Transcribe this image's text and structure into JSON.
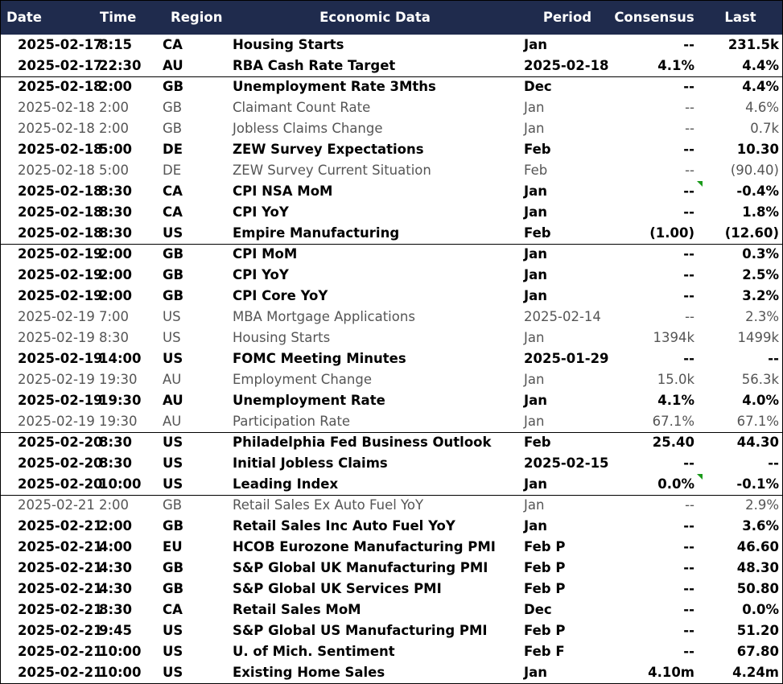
{
  "table": {
    "header": [
      "Date",
      "Time",
      "Region",
      "Economic Data",
      "Period",
      "Consensus",
      "Last"
    ],
    "rows": [
      {
        "bold": true,
        "cells": [
          "2025-02-17",
          "8:15",
          "CA",
          "Housing Starts",
          "Jan",
          "--",
          "231.5k"
        ]
      },
      {
        "bold": true,
        "cells": [
          "2025-02-17",
          "22:30",
          "AU",
          "RBA Cash Rate Target",
          "2025-02-18",
          "4.1%",
          "4.4%"
        ]
      },
      {
        "bold": true,
        "cells": [
          "2025-02-18",
          "2:00",
          "GB",
          "Unemployment Rate 3Mths",
          "Dec",
          "--",
          "4.4%"
        ]
      },
      {
        "bold": false,
        "cells": [
          "2025-02-18",
          "2:00",
          "GB",
          "Claimant Count Rate",
          "Jan",
          "--",
          "4.6%"
        ]
      },
      {
        "bold": false,
        "cells": [
          "2025-02-18",
          "2:00",
          "GB",
          "Jobless Claims Change",
          "Jan",
          "--",
          "0.7k"
        ]
      },
      {
        "bold": true,
        "cells": [
          "2025-02-18",
          "5:00",
          "DE",
          "ZEW Survey Expectations",
          "Feb",
          "--",
          "10.30"
        ]
      },
      {
        "bold": false,
        "cells": [
          "2025-02-18",
          "5:00",
          "DE",
          "ZEW Survey Current Situation",
          "Feb",
          "--",
          "(90.40)"
        ]
      },
      {
        "bold": true,
        "cells": [
          "2025-02-18",
          "8:30",
          "CA",
          "CPI NSA MoM",
          "Jan",
          "--",
          "-0.4%"
        ]
      },
      {
        "bold": true,
        "cells": [
          "2025-02-18",
          "8:30",
          "CA",
          "CPI YoY",
          "Jan",
          "--",
          "1.8%"
        ]
      },
      {
        "bold": true,
        "cells": [
          "2025-02-18",
          "8:30",
          "US",
          "Empire Manufacturing",
          "Feb",
          "(1.00)",
          "(12.60)"
        ]
      },
      {
        "bold": true,
        "cells": [
          "2025-02-19",
          "2:00",
          "GB",
          "CPI MoM",
          "Jan",
          "--",
          "0.3%"
        ]
      },
      {
        "bold": true,
        "cells": [
          "2025-02-19",
          "2:00",
          "GB",
          "CPI YoY",
          "Jan",
          "--",
          "2.5%"
        ]
      },
      {
        "bold": true,
        "cells": [
          "2025-02-19",
          "2:00",
          "GB",
          "CPI Core YoY",
          "Jan",
          "--",
          "3.2%"
        ]
      },
      {
        "bold": false,
        "cells": [
          "2025-02-19",
          "7:00",
          "US",
          "MBA Mortgage Applications",
          "2025-02-14",
          "--",
          "2.3%"
        ]
      },
      {
        "bold": false,
        "cells": [
          "2025-02-19",
          "8:30",
          "US",
          "Housing Starts",
          "Jan",
          "1394k",
          "1499k"
        ]
      },
      {
        "bold": true,
        "cells": [
          "2025-02-19",
          "14:00",
          "US",
          "FOMC Meeting Minutes",
          "2025-01-29",
          "--",
          "--"
        ]
      },
      {
        "bold": false,
        "cells": [
          "2025-02-19",
          "19:30",
          "AU",
          "Employment Change",
          "Jan",
          "15.0k",
          "56.3k"
        ]
      },
      {
        "bold": true,
        "cells": [
          "2025-02-19",
          "19:30",
          "AU",
          "Unemployment Rate",
          "Jan",
          "4.1%",
          "4.0%"
        ]
      },
      {
        "bold": false,
        "cells": [
          "2025-02-19",
          "19:30",
          "AU",
          "Participation Rate",
          "Jan",
          "67.1%",
          "67.1%"
        ]
      },
      {
        "bold": true,
        "cells": [
          "2025-02-20",
          "8:30",
          "US",
          "Philadelphia Fed Business Outlook",
          "Feb",
          "25.40",
          "44.30"
        ]
      },
      {
        "bold": true,
        "cells": [
          "2025-02-20",
          "8:30",
          "US",
          "Initial Jobless Claims",
          "2025-02-15",
          "--",
          "--"
        ]
      },
      {
        "bold": true,
        "cells": [
          "2025-02-20",
          "10:00",
          "US",
          "Leading Index",
          "Jan",
          "0.0%",
          "-0.1%"
        ]
      },
      {
        "bold": false,
        "cells": [
          "2025-02-21",
          "2:00",
          "GB",
          "Retail Sales Ex Auto Fuel YoY",
          "Jan",
          "--",
          "2.9%"
        ]
      },
      {
        "bold": true,
        "cells": [
          "2025-02-21",
          "2:00",
          "GB",
          "Retail Sales Inc Auto Fuel YoY",
          "Jan",
          "--",
          "3.6%"
        ]
      },
      {
        "bold": true,
        "cells": [
          "2025-02-21",
          "4:00",
          "EU",
          "HCOB Eurozone Manufacturing PMI",
          "Feb P",
          "--",
          "46.60"
        ]
      },
      {
        "bold": true,
        "cells": [
          "2025-02-21",
          "4:30",
          "GB",
          "S&P Global UK Manufacturing PMI",
          "Feb P",
          "--",
          "48.30"
        ]
      },
      {
        "bold": true,
        "cells": [
          "2025-02-21",
          "4:30",
          "GB",
          "S&P Global UK Services PMI",
          "Feb P",
          "--",
          "50.80"
        ]
      },
      {
        "bold": true,
        "cells": [
          "2025-02-21",
          "8:30",
          "CA",
          "Retail Sales MoM",
          "Dec",
          "--",
          "0.0%"
        ]
      },
      {
        "bold": true,
        "cells": [
          "2025-02-21",
          "9:45",
          "US",
          "S&P Global US Manufacturing PMI",
          "Feb P",
          "--",
          "51.20"
        ]
      },
      {
        "bold": true,
        "cells": [
          "2025-02-21",
          "10:00",
          "US",
          "U. of Mich. Sentiment",
          "Feb F",
          "--",
          "67.80"
        ]
      },
      {
        "bold": true,
        "cells": [
          "2025-02-21",
          "10:00",
          "US",
          "Existing Home Sales",
          "Jan",
          "4.10m",
          "4.24m"
        ]
      }
    ]
  }
}
